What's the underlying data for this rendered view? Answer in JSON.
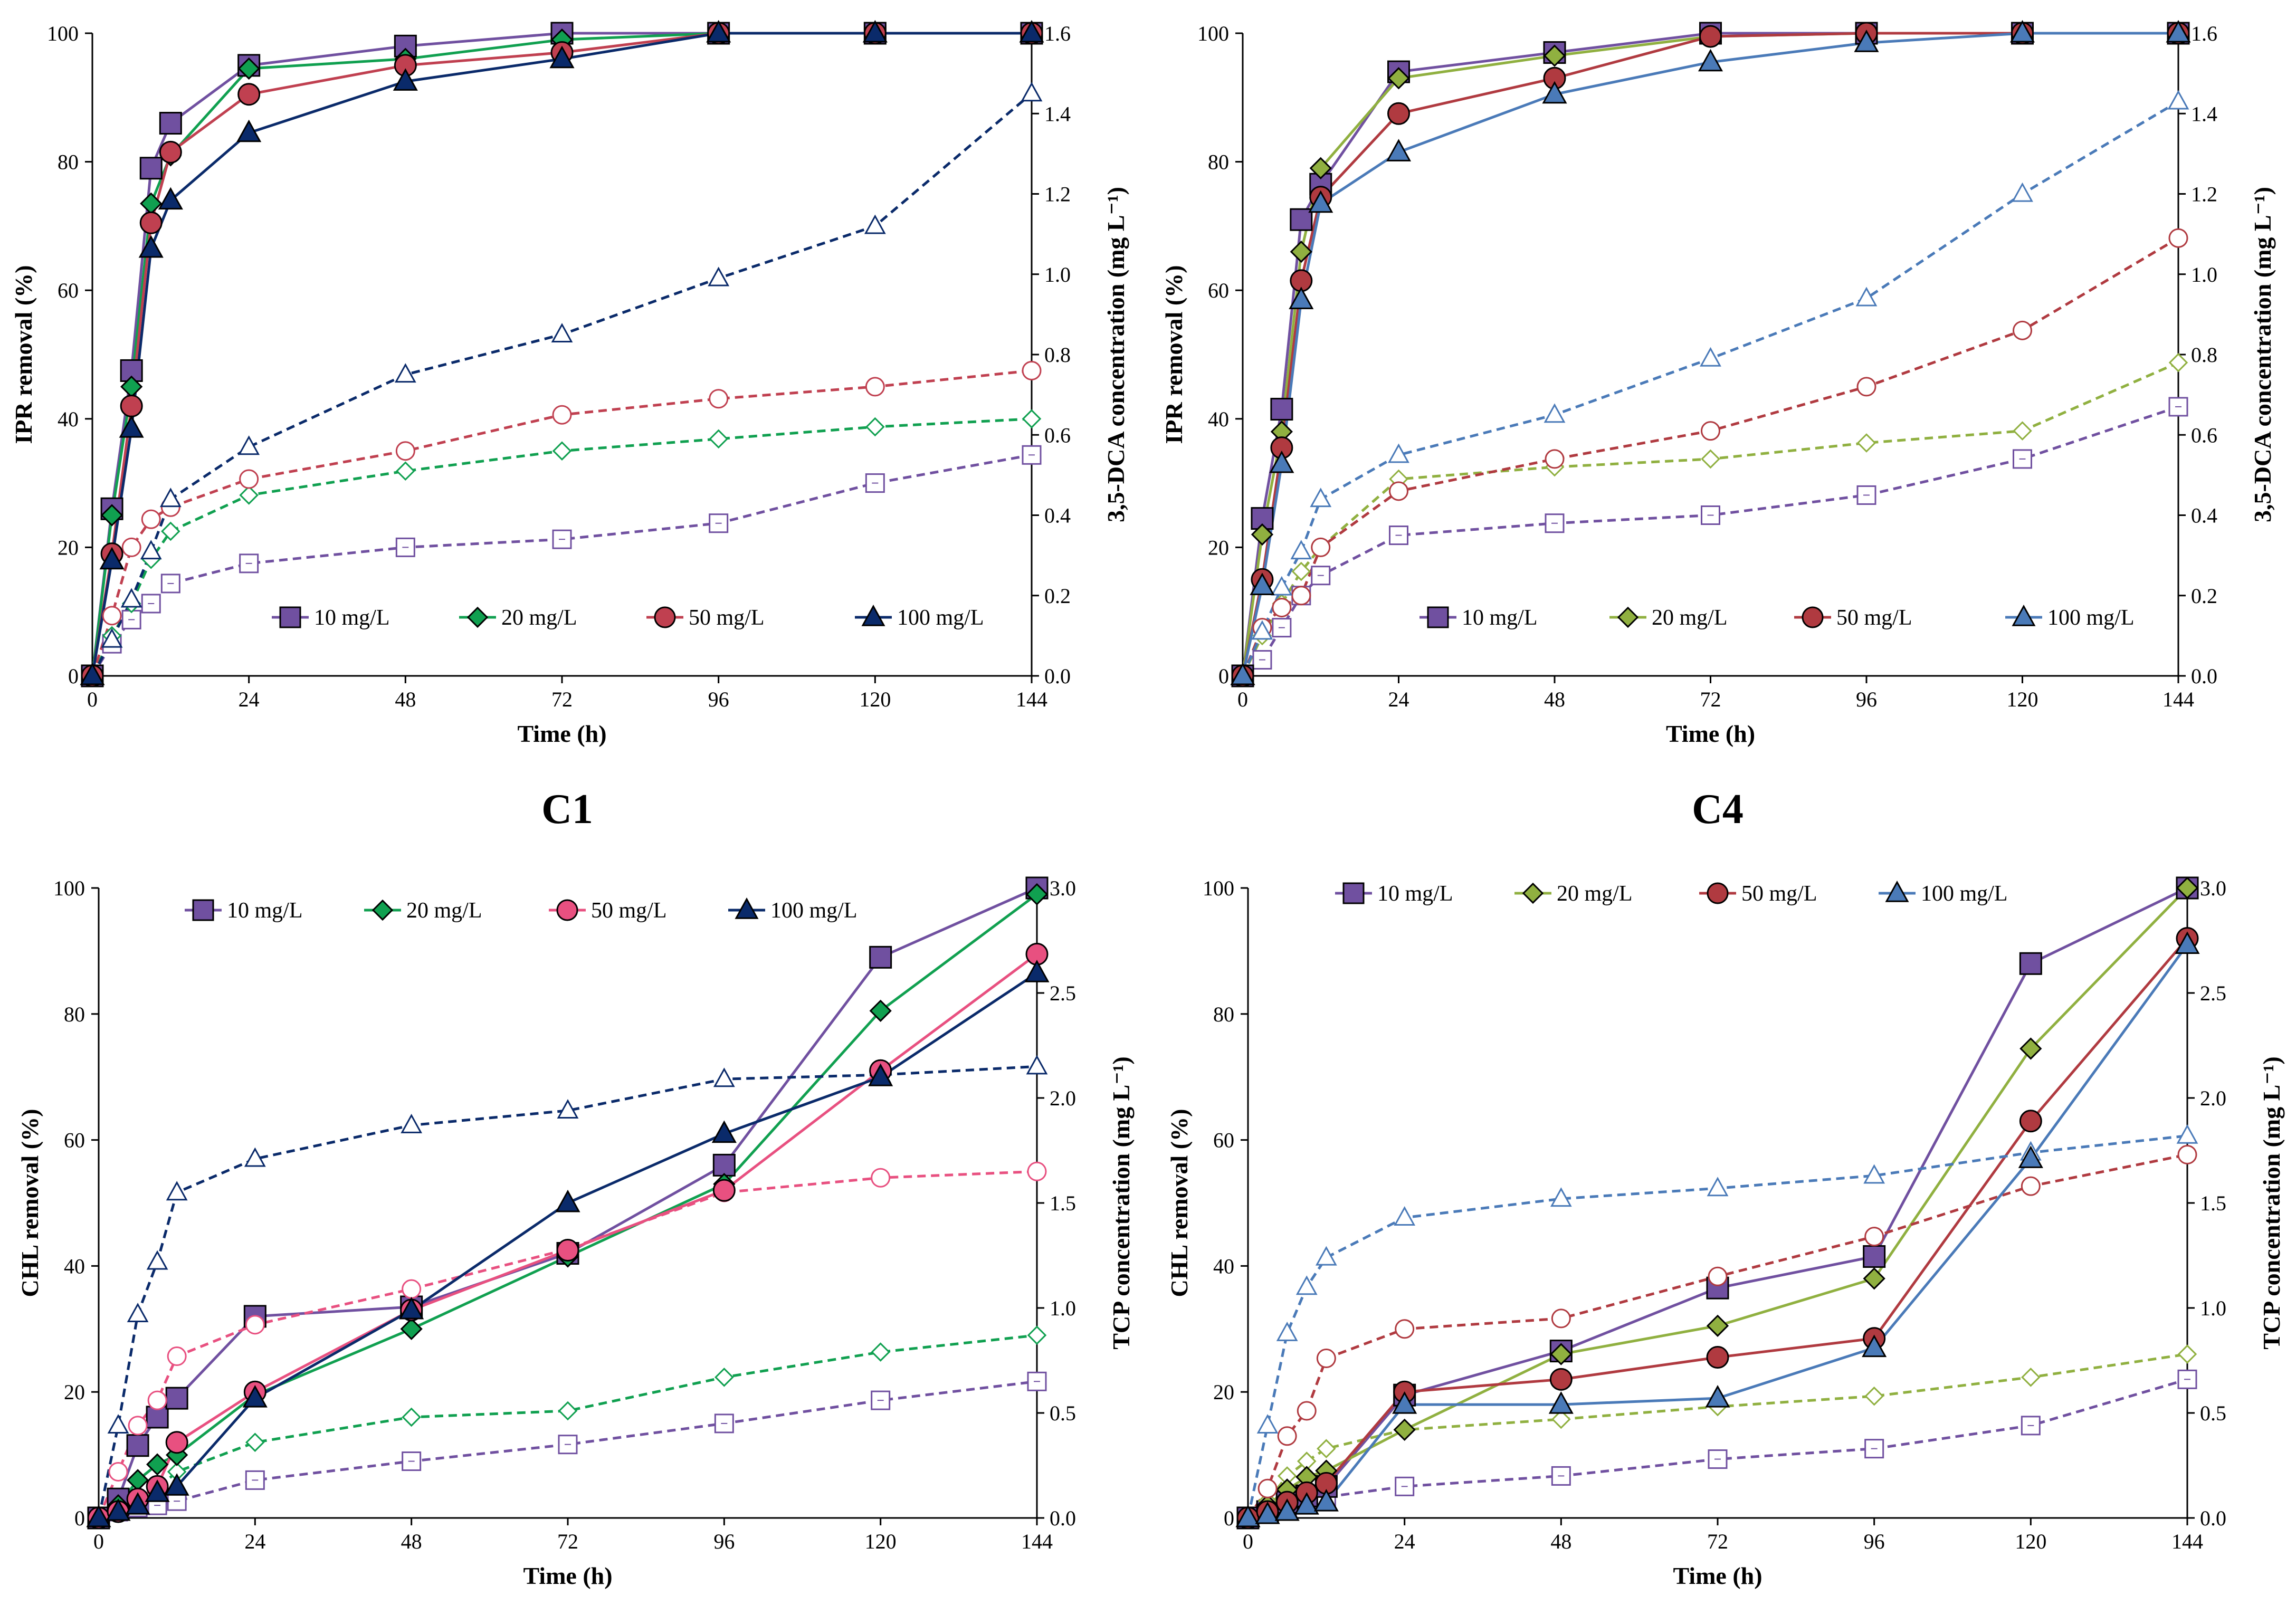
{
  "figure": {
    "panel_titles": [
      "C1",
      "C4"
    ]
  },
  "chart_data": [
    {
      "type": "line",
      "panel": "top-left",
      "x_values": [
        0,
        3,
        6,
        9,
        12,
        24,
        48,
        72,
        96,
        120,
        144
      ],
      "xlabel": "Time (h)",
      "ylabel": "IPR removal (%)",
      "y2label": "3,5-DCA concentration (mg L⁻¹)",
      "xlim": [
        0,
        144
      ],
      "xticks": [
        "0",
        "24",
        "48",
        "72",
        "96",
        "120",
        "144"
      ],
      "ylim": [
        0,
        100
      ],
      "yticks": [
        "0",
        "20",
        "40",
        "60",
        "80",
        "100"
      ],
      "y2lim": [
        0,
        1.6
      ],
      "y2ticks": [
        "0.0",
        "0.2",
        "0.4",
        "0.6",
        "0.8",
        "1.0",
        "1.2",
        "1.4",
        "1.6"
      ],
      "legend_position": "bottom",
      "series": [
        {
          "name": "10 mg/L",
          "marker": "square",
          "color": "#7050a0",
          "removal": [
            0,
            26,
            47.5,
            79,
            86,
            95,
            98,
            100,
            100,
            100,
            100
          ],
          "product": [
            0,
            0.08,
            0.14,
            0.18,
            0.23,
            0.28,
            0.32,
            0.34,
            0.38,
            0.48,
            0.55
          ]
        },
        {
          "name": "20 mg/L",
          "marker": "diamond",
          "color": "#10a050",
          "removal": [
            0,
            25,
            45,
            73.5,
            81,
            94.5,
            96,
            99,
            100,
            100,
            100
          ],
          "product": [
            0,
            0.1,
            0.18,
            0.29,
            0.36,
            0.45,
            0.51,
            0.56,
            0.59,
            0.62,
            0.64
          ]
        },
        {
          "name": "50 mg/L",
          "marker": "circle",
          "color": "#c04050",
          "removal": [
            0,
            19,
            42,
            70.5,
            81.5,
            90.5,
            95,
            97,
            100,
            100,
            100
          ],
          "product": [
            0,
            0.15,
            0.32,
            0.39,
            0.42,
            0.49,
            0.56,
            0.65,
            0.69,
            0.72,
            0.76
          ]
        },
        {
          "name": "100 mg/L",
          "marker": "triangle",
          "color": "#0a2a6a",
          "removal": [
            0,
            18,
            38.5,
            66.5,
            74,
            84.5,
            92.5,
            96,
            100,
            100,
            100
          ],
          "product": [
            0,
            0.09,
            0.19,
            0.31,
            0.44,
            0.57,
            0.75,
            0.85,
            0.99,
            1.12,
            1.45
          ]
        }
      ]
    },
    {
      "type": "line",
      "panel": "top-right",
      "x_values": [
        0,
        3,
        6,
        9,
        12,
        24,
        48,
        72,
        96,
        120,
        144
      ],
      "xlabel": "Time (h)",
      "ylabel": "IPR removal (%)",
      "y2label": "3,5-DCA concentration (mg L⁻¹)",
      "xlim": [
        0,
        144
      ],
      "xticks": [
        "0",
        "24",
        "48",
        "72",
        "96",
        "120",
        "144"
      ],
      "ylim": [
        0,
        100
      ],
      "yticks": [
        "0",
        "20",
        "40",
        "60",
        "80",
        "100"
      ],
      "y2lim": [
        0,
        1.6
      ],
      "y2ticks": [
        "0.0",
        "0.2",
        "0.4",
        "0.6",
        "0.8",
        "1.0",
        "1.2",
        "1.4",
        "1.6"
      ],
      "legend_position": "bottom",
      "series": [
        {
          "name": "10 mg/L",
          "marker": "square",
          "color": "#7050a0",
          "removal": [
            0,
            24.5,
            41.5,
            71,
            76.5,
            94,
            97,
            100,
            100,
            100,
            100
          ],
          "product": [
            0,
            0.04,
            0.12,
            0.2,
            0.25,
            0.35,
            0.38,
            0.4,
            0.45,
            0.54,
            0.67
          ]
        },
        {
          "name": "20 mg/L",
          "marker": "diamond",
          "color": "#90b040",
          "removal": [
            0,
            22,
            38,
            66,
            79,
            93,
            96.5,
            99.5,
            100,
            100,
            100
          ],
          "product": [
            0,
            0.1,
            0.18,
            0.26,
            0.32,
            0.49,
            0.52,
            0.54,
            0.58,
            0.61,
            0.78
          ]
        },
        {
          "name": "50 mg/L",
          "marker": "circle",
          "color": "#b03a40",
          "removal": [
            0,
            15,
            35.5,
            61.5,
            74.5,
            87.5,
            93,
            99.5,
            100,
            100,
            100
          ],
          "product": [
            0,
            0.12,
            0.17,
            0.2,
            0.32,
            0.46,
            0.54,
            0.61,
            0.72,
            0.86,
            1.09
          ]
        },
        {
          "name": "100 mg/L",
          "marker": "triangle",
          "color": "#4a7ab8",
          "removal": [
            0,
            14,
            33,
            58.5,
            73.5,
            81.5,
            90.5,
            95.5,
            98.5,
            100,
            100
          ],
          "product": [
            0,
            0.11,
            0.22,
            0.31,
            0.44,
            0.55,
            0.65,
            0.79,
            0.94,
            1.2,
            1.43
          ]
        }
      ]
    },
    {
      "type": "line",
      "panel": "bottom-left",
      "x_values": [
        0,
        3,
        6,
        9,
        12,
        24,
        48,
        72,
        96,
        120,
        144
      ],
      "xlabel": "Time (h)",
      "ylabel": "CHL removal (%)",
      "y2label": "TCP concentration (mg L⁻¹)",
      "xlim": [
        0,
        144
      ],
      "xticks": [
        "0",
        "24",
        "48",
        "72",
        "96",
        "120",
        "144"
      ],
      "ylim": [
        0,
        100
      ],
      "yticks": [
        "0",
        "20",
        "40",
        "60",
        "80",
        "100"
      ],
      "y2lim": [
        0,
        3.0
      ],
      "y2ticks": [
        "0.0",
        "0.5",
        "1.0",
        "1.5",
        "2.0",
        "2.5",
        "3.0"
      ],
      "legend_position": "top",
      "series": [
        {
          "name": "10 mg/L",
          "marker": "square",
          "color": "#7050a0",
          "removal": [
            0,
            3,
            11.5,
            16,
            19,
            32,
            33.5,
            42,
            56,
            89,
            100
          ],
          "product": [
            0,
            0.03,
            0.05,
            0.06,
            0.08,
            0.18,
            0.27,
            0.35,
            0.45,
            0.56,
            0.65
          ]
        },
        {
          "name": "20 mg/L",
          "marker": "diamond",
          "color": "#10a050",
          "removal": [
            0,
            2,
            6,
            8.5,
            10,
            19.5,
            30,
            41.5,
            53,
            80.5,
            99
          ],
          "product": [
            0,
            0.05,
            0.09,
            0.14,
            0.22,
            0.36,
            0.48,
            0.51,
            0.67,
            0.79,
            0.87
          ]
        },
        {
          "name": "50 mg/L",
          "marker": "circle",
          "color": "#e85080",
          "removal": [
            0,
            1,
            3,
            5,
            12,
            20,
            33,
            42.5,
            52,
            71,
            89.5
          ],
          "product": [
            0,
            0.22,
            0.44,
            0.56,
            0.77,
            0.92,
            1.09,
            1.28,
            1.55,
            1.62,
            1.65
          ]
        },
        {
          "name": "100 mg/L",
          "marker": "triangle",
          "color": "#0a2a6a",
          "removal": [
            0,
            1,
            2,
            4,
            5,
            19,
            33,
            50,
            61,
            70,
            86.5
          ],
          "product": [
            0,
            0.44,
            0.97,
            1.22,
            1.55,
            1.71,
            1.87,
            1.94,
            2.09,
            2.11,
            2.15
          ]
        }
      ]
    },
    {
      "type": "line",
      "panel": "bottom-right",
      "x_values": [
        0,
        3,
        6,
        9,
        12,
        24,
        48,
        72,
        96,
        120,
        144
      ],
      "xlabel": "Time (h)",
      "ylabel": "CHL removal (%)",
      "y2label": "TCP concentration (mg L⁻¹)",
      "xlim": [
        0,
        144
      ],
      "xticks": [
        "0",
        "24",
        "48",
        "72",
        "96",
        "120",
        "144"
      ],
      "ylim": [
        0,
        100
      ],
      "yticks": [
        "0",
        "20",
        "40",
        "60",
        "80",
        "100"
      ],
      "y2lim": [
        0,
        3.0
      ],
      "y2ticks": [
        "0.0",
        "0.5",
        "1.0",
        "1.5",
        "2.0",
        "2.5",
        "3.0"
      ],
      "legend_position": "top",
      "series": [
        {
          "name": "10 mg/L",
          "marker": "square",
          "color": "#7050a0",
          "removal": [
            0,
            1,
            2.5,
            3.5,
            5,
            19.5,
            26.5,
            36.5,
            41.5,
            88,
            100
          ],
          "product": [
            0,
            0.03,
            0.05,
            0.08,
            0.1,
            0.15,
            0.2,
            0.28,
            0.33,
            0.44,
            0.66
          ]
        },
        {
          "name": "20 mg/L",
          "marker": "diamond",
          "color": "#90b040",
          "removal": [
            0,
            2,
            4.5,
            6.5,
            7.5,
            14,
            26,
            30.5,
            38,
            74.5,
            100
          ],
          "product": [
            0,
            0.08,
            0.2,
            0.27,
            0.33,
            0.42,
            0.47,
            0.53,
            0.58,
            0.67,
            0.78
          ]
        },
        {
          "name": "50 mg/L",
          "marker": "circle",
          "color": "#b03a40",
          "removal": [
            0,
            1,
            2.5,
            4,
            5.5,
            20,
            22,
            25.5,
            28.5,
            63,
            92
          ],
          "product": [
            0,
            0.14,
            0.39,
            0.51,
            0.76,
            0.9,
            0.95,
            1.15,
            1.34,
            1.58,
            1.73
          ]
        },
        {
          "name": "100 mg/L",
          "marker": "triangle",
          "color": "#4a7ab8",
          "removal": [
            0,
            0.5,
            1,
            2,
            2.5,
            18,
            18,
            19,
            27,
            57,
            91
          ],
          "product": [
            0,
            0.44,
            0.88,
            1.1,
            1.24,
            1.43,
            1.52,
            1.57,
            1.63,
            1.74,
            1.82
          ]
        }
      ]
    }
  ]
}
